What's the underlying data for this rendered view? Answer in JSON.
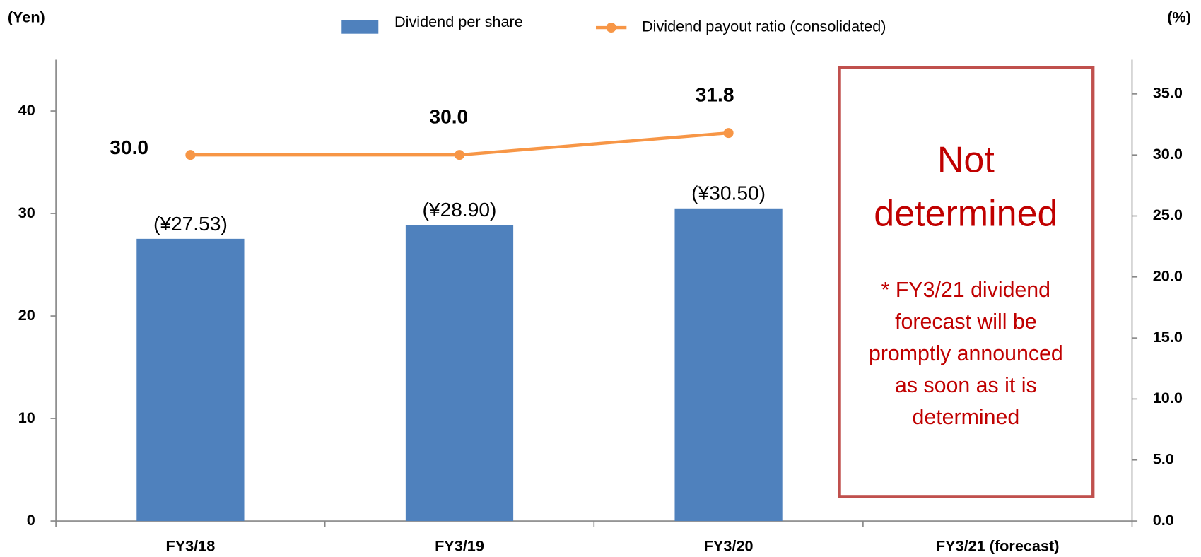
{
  "chart_data": {
    "type": "bar",
    "y_axis_label": "(Yen)",
    "y2_axis_label": "(%)",
    "categories": [
      "FY3/18",
      "FY3/19",
      "FY3/20",
      "FY3/21 (forecast)"
    ],
    "series": [
      {
        "name": "Dividend per share",
        "type": "bar",
        "color": "#4f81bd",
        "values": [
          27.53,
          28.9,
          30.5,
          null
        ],
        "value_labels": [
          "(¥27.53)",
          "(¥28.90)",
          "(¥30.50)",
          null
        ]
      },
      {
        "name": "Dividend payout ratio (consolidated)",
        "type": "line",
        "axis": "y2",
        "color": "#f79646",
        "values": [
          30.0,
          30.0,
          31.8,
          null
        ],
        "value_labels": [
          "30.0",
          "30.0",
          "31.8",
          null
        ]
      }
    ],
    "ylim": [
      0,
      45
    ],
    "yticks": [
      0,
      10,
      20,
      30,
      40
    ],
    "y2lim": [
      0,
      37.8
    ],
    "y2ticks": [
      {
        "value": 0,
        "label": "0.0"
      },
      {
        "value": 5,
        "label": "5.0"
      },
      {
        "value": 10,
        "label": "10.0"
      },
      {
        "value": 15,
        "label": "15.0"
      },
      {
        "value": 20,
        "label": "20.0"
      },
      {
        "value": 25,
        "label": "25.0"
      },
      {
        "value": 30,
        "label": "30.0"
      },
      {
        "value": 35,
        "label": "35.0"
      }
    ],
    "annotation": {
      "title": [
        "Not",
        "determined"
      ],
      "note": [
        "* FY3/21 dividend",
        "forecast will be",
        "promptly announced",
        "as soon as it is",
        "determined"
      ],
      "color": "#c00000",
      "border_color": "#c0504d"
    }
  }
}
